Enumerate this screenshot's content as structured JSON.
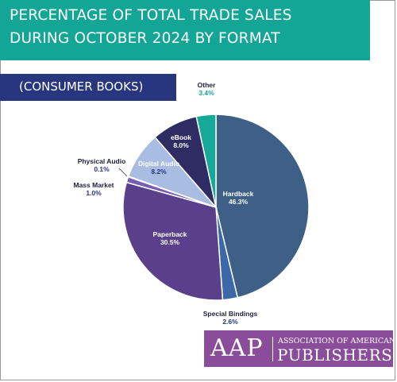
{
  "header": {
    "title_line1": "PERCENTAGE OF TOTAL TRADE SALES",
    "title_line2": "DURING OCTOBER 2024 BY FORMAT",
    "subtitle": "(CONSUMER BOOKS)"
  },
  "logo": {
    "letters": "AAP",
    "line1": "ASSOCIATION OF AMERICAN",
    "line2": "PUBLISHERS"
  },
  "colors": {
    "title_banner": "#13a595",
    "subtitle_banner": "#27367f",
    "logo_background": "#8a4d99"
  },
  "chart_data": {
    "type": "pie",
    "start_angle_deg": 0,
    "direction": "clockwise",
    "slices": [
      {
        "name": "Hardback",
        "value": 46.3,
        "value_label": "46.3%",
        "color": "#3e5f86"
      },
      {
        "name": "Special Bindings",
        "value": 2.6,
        "value_label": "2.6%",
        "color": "#3b68a7"
      },
      {
        "name": "Paperback",
        "value": 30.5,
        "value_label": "30.5%",
        "color": "#5a3f8a"
      },
      {
        "name": "Mass Market",
        "value": 1.0,
        "value_label": "1.0%",
        "color": "#7a5fb0"
      },
      {
        "name": "Physical Audio",
        "value": 0.1,
        "value_label": "0.1%",
        "color": "#6b7fbf"
      },
      {
        "name": "Digital Audio",
        "value": 8.2,
        "value_label": "8.2%",
        "color": "#a9bde3"
      },
      {
        "name": "eBook",
        "value": 8.0,
        "value_label": "8.0%",
        "color": "#2f2c63"
      },
      {
        "name": "Other",
        "value": 3.4,
        "value_label": "3.4%",
        "color": "#16a899"
      }
    ]
  }
}
